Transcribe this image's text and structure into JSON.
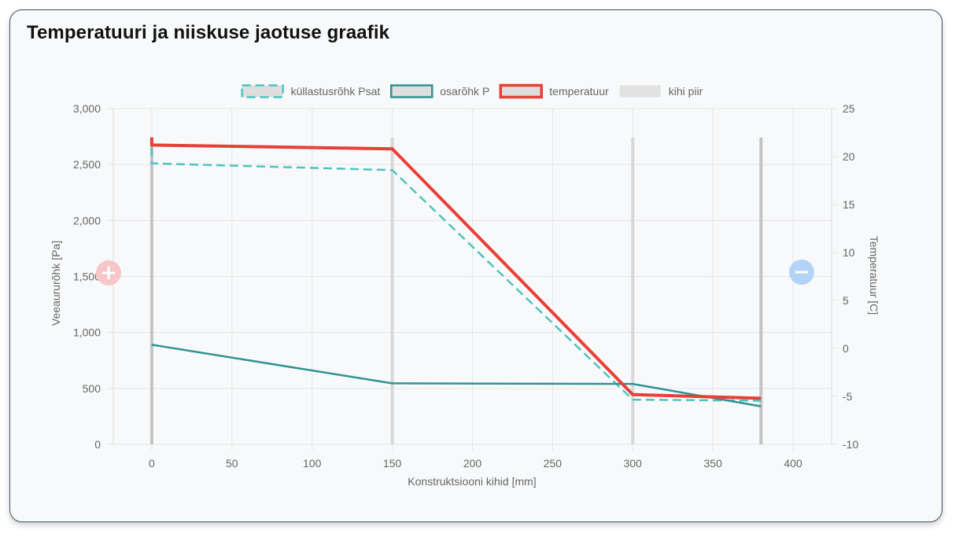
{
  "page": {
    "title": "Temperatuuri ja niiskuse jaotuse graafik",
    "zoom_in_symbol": "+",
    "zoom_out_symbol": "−"
  },
  "colors": {
    "psat": "#4dc4c0",
    "p": "#2e9490",
    "temperature": "#e84038",
    "boundary": "#d8d8d8",
    "grid": "#e6e6e6",
    "text": "#666666",
    "zoom_in": "#f7c6c9",
    "zoom_out": "#b4d3f8"
  },
  "chart_data": {
    "type": "line",
    "xlabel": "Konstruktsiooni kihid [mm]",
    "ylabel": "Veeaururõhk [Pa]",
    "y2label": "Temperatuur [C]",
    "xlim": [
      -24,
      424
    ],
    "ylim": [
      0,
      3000
    ],
    "y2lim": [
      -10,
      25
    ],
    "x_ticks": [
      0,
      50,
      100,
      150,
      200,
      250,
      300,
      350,
      400
    ],
    "y_ticks": [
      0,
      500,
      1000,
      1500,
      2000,
      2500,
      3000
    ],
    "y_tick_labels": [
      "0",
      "500",
      "1,000",
      "1,500",
      "2,000",
      "2,500",
      "3,000"
    ],
    "y2_ticks": [
      -10,
      -5,
      0,
      5,
      10,
      15,
      20,
      25
    ],
    "grid": true,
    "legend_position": "top",
    "series": [
      {
        "name": "küllastusrõhk Psat",
        "axis": "left",
        "style": "dashed",
        "color": "#4dc4c0",
        "x": [
          0,
          0,
          150,
          300,
          380
        ],
        "y": [
          2650,
          2510,
          2450,
          400,
          390
        ]
      },
      {
        "name": "osarõhk P",
        "axis": "left",
        "style": "solid",
        "color": "#2e9490",
        "x": [
          0,
          150,
          300,
          380
        ],
        "y": [
          890,
          545,
          540,
          340
        ]
      },
      {
        "name": "temperatuur",
        "axis": "right",
        "style": "solid-thick",
        "color": "#e84038",
        "x": [
          0,
          0,
          150,
          300,
          380
        ],
        "y": [
          22,
          21.2,
          20.8,
          -4.8,
          -5.2
        ]
      },
      {
        "name": "kihi piir",
        "type": "vertical-lines",
        "color": "#d8d8d8",
        "x": [
          0,
          150,
          300,
          380
        ],
        "y_range": [
          0,
          2740
        ]
      }
    ]
  }
}
